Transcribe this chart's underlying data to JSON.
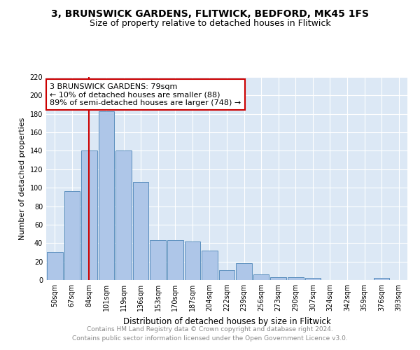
{
  "title": "3, BRUNSWICK GARDENS, FLITWICK, BEDFORD, MK45 1FS",
  "subtitle": "Size of property relative to detached houses in Flitwick",
  "xlabel": "Distribution of detached houses by size in Flitwick",
  "ylabel": "Number of detached properties",
  "bins": [
    "50sqm",
    "67sqm",
    "84sqm",
    "101sqm",
    "119sqm",
    "136sqm",
    "153sqm",
    "170sqm",
    "187sqm",
    "204sqm",
    "222sqm",
    "239sqm",
    "256sqm",
    "273sqm",
    "290sqm",
    "307sqm",
    "324sqm",
    "342sqm",
    "359sqm",
    "376sqm",
    "393sqm"
  ],
  "values": [
    30,
    96,
    140,
    183,
    140,
    106,
    43,
    43,
    42,
    32,
    11,
    18,
    6,
    3,
    3,
    2,
    0,
    0,
    0,
    2,
    0
  ],
  "bar_color": "#aec6e8",
  "bar_edge_color": "#5b8fbe",
  "vline_x": 2,
  "vline_color": "#cc0000",
  "annotation_text": "3 BRUNSWICK GARDENS: 79sqm\n← 10% of detached houses are smaller (88)\n89% of semi-detached houses are larger (748) →",
  "annotation_box_color": "#ffffff",
  "annotation_box_edge_color": "#cc0000",
  "ylim": [
    0,
    220
  ],
  "yticks": [
    0,
    20,
    40,
    60,
    80,
    100,
    120,
    140,
    160,
    180,
    200,
    220
  ],
  "plot_bg_color": "#dce8f5",
  "grid_color": "#ffffff",
  "footer": "Contains HM Land Registry data © Crown copyright and database right 2024.\nContains public sector information licensed under the Open Government Licence v3.0.",
  "title_fontsize": 10,
  "subtitle_fontsize": 9,
  "xlabel_fontsize": 8.5,
  "ylabel_fontsize": 8,
  "tick_fontsize": 7,
  "annotation_fontsize": 8,
  "footer_fontsize": 6.5
}
